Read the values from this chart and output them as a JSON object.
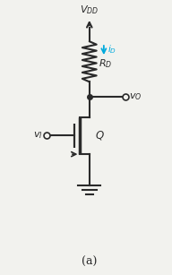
{
  "bg_color": "#f2f2ee",
  "line_color": "#2a2a2a",
  "cyan_color": "#00aadd",
  "vdd_label": "$V_{DD}$",
  "id_label": "$i_D$",
  "rd_label": "$R_D$",
  "vo_label": "$v_O$",
  "vi_label": "$v_I$",
  "q_label": "$Q$",
  "caption": "(a)",
  "fig_width": 1.92,
  "fig_height": 3.07,
  "dpi": 100
}
